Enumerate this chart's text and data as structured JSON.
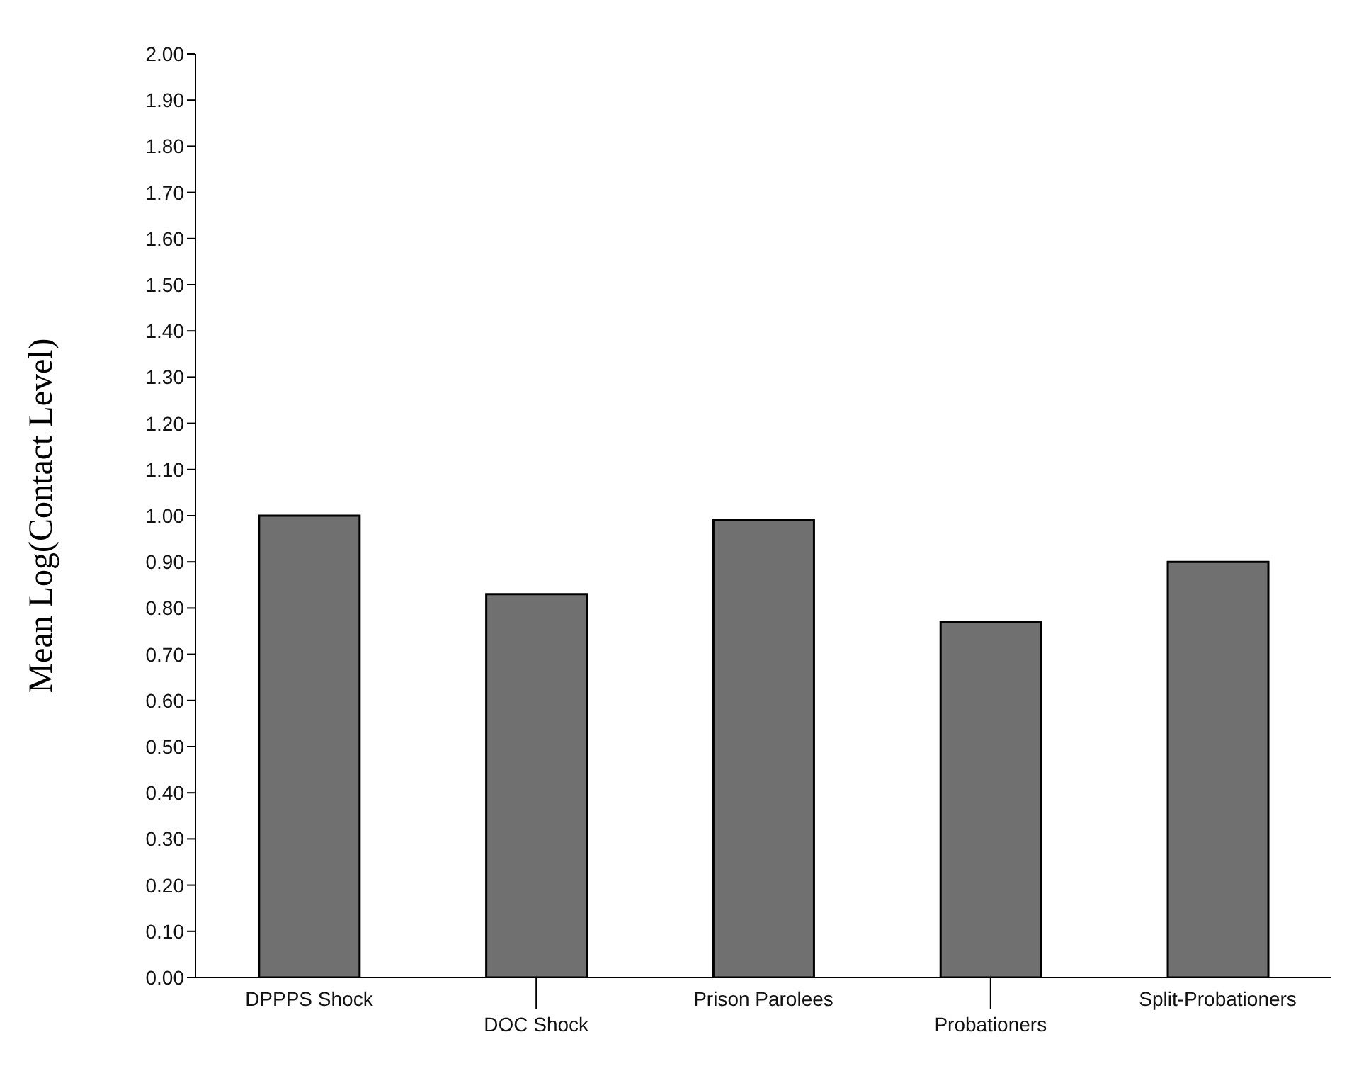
{
  "chart_data": {
    "type": "bar",
    "ylabel": "Mean Log(Contact Level)",
    "categories": [
      "DPPPS Shock",
      "DOC Shock",
      "Prison Parolees",
      "Probationers",
      "Split-Probationers"
    ],
    "values": [
      1.0,
      0.83,
      0.99,
      0.77,
      0.9
    ],
    "color": "#707070",
    "ylim": [
      0,
      2
    ],
    "yticks": [
      {
        "value": 0,
        "label": "0.00"
      },
      {
        "value": 0.1,
        "label": "0.10"
      },
      {
        "value": 0.2,
        "label": "0.20"
      },
      {
        "value": 0.3,
        "label": "0.30"
      },
      {
        "value": 0.4,
        "label": "0.40"
      },
      {
        "value": 0.5,
        "label": "0.50"
      },
      {
        "value": 0.6,
        "label": "0.60"
      },
      {
        "value": 0.7,
        "label": "0.70"
      },
      {
        "value": 0.8,
        "label": "0.80"
      },
      {
        "value": 0.9,
        "label": "0.90"
      },
      {
        "value": 1,
        "label": "1.00"
      },
      {
        "value": 1.1,
        "label": "1.10"
      },
      {
        "value": 1.2,
        "label": "1.20"
      },
      {
        "value": 1.3,
        "label": "1.30"
      },
      {
        "value": 1.4,
        "label": "1.40"
      },
      {
        "value": 1.5,
        "label": "1.50"
      },
      {
        "value": 1.6,
        "label": "1.60"
      },
      {
        "value": 1.7,
        "label": "1.70"
      },
      {
        "value": 1.8,
        "label": "1.80"
      },
      {
        "value": 1.9,
        "label": "1.90"
      },
      {
        "value": 2,
        "label": "2.00"
      }
    ],
    "grid": false
  }
}
